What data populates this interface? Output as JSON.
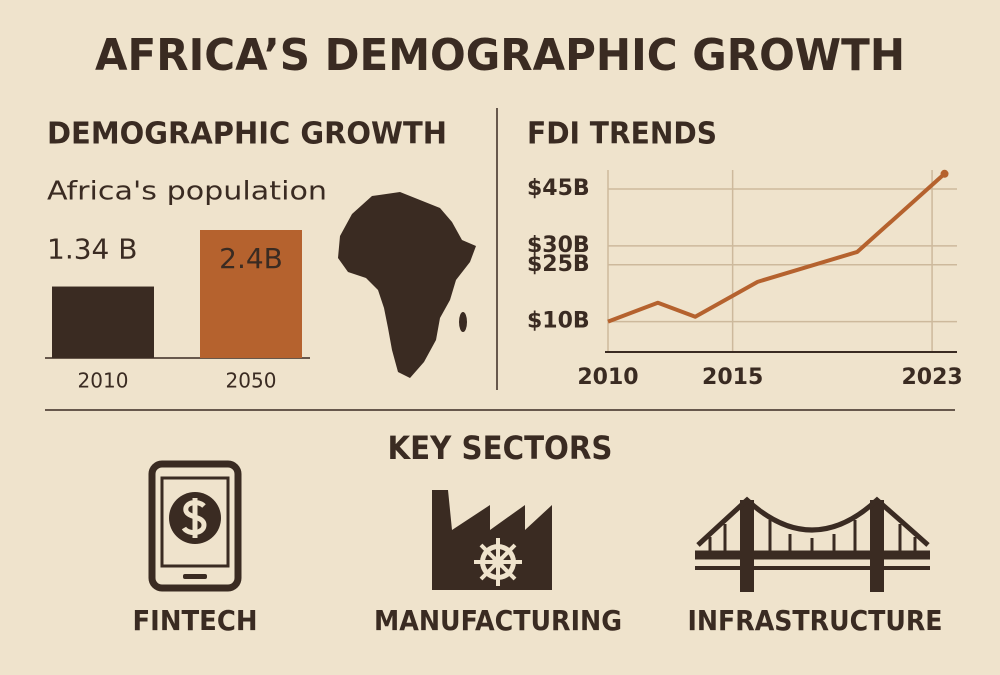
{
  "title": "AFRICA’S DEMOGRAPHIC GROWTH",
  "chart_data": [
    {
      "type": "bar",
      "title": "DEMOGRAPHIC GROWTH",
      "subtitle": "Africa's population",
      "categories": [
        "2010",
        "2050"
      ],
      "values": [
        1.34,
        2.4
      ],
      "value_labels": [
        "1.34 B",
        "2.4B"
      ],
      "colors": [
        "#3a2b22",
        "#b5622e"
      ]
    },
    {
      "type": "line",
      "title": "FDI TRENDS",
      "x": [
        2010,
        2012,
        2013.5,
        2016,
        2020,
        2023.5
      ],
      "values": [
        10,
        15,
        11.3,
        20.5,
        28.4,
        49
      ],
      "color": "#b5622e",
      "xlim": [
        2010,
        2024
      ],
      "xticks": [
        2010,
        2015,
        2023
      ],
      "ylim": [
        2,
        50
      ],
      "yticks": [
        {
          "value": 10,
          "label": "$10B"
        },
        {
          "value": 25,
          "label": "$25B"
        },
        {
          "value": 30,
          "label": "$30B"
        },
        {
          "value": 45,
          "label": "$45B"
        }
      ],
      "grid": true
    }
  ],
  "sectors": {
    "title": "KEY SECTORS",
    "items": [
      "FINTECH",
      "MANUFACTURING",
      "INFRASTRUCTURE"
    ]
  }
}
